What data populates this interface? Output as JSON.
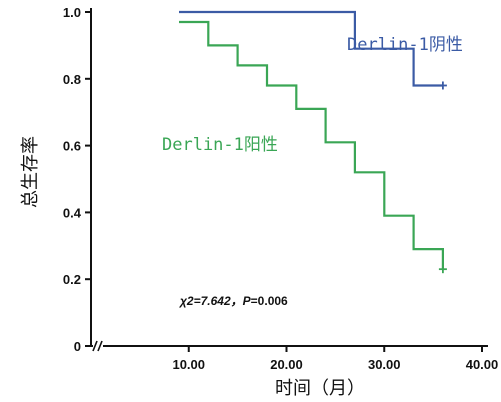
{
  "chart_data": {
    "type": "line",
    "step": true,
    "title": "",
    "xlabel": "时间（月）",
    "ylabel": "总生存率",
    "x_ticks": [
      "10.00",
      "20.00",
      "30.00",
      "40.00"
    ],
    "x_tick_values": [
      10,
      20,
      30,
      40
    ],
    "y_ticks": [
      "0",
      "0.2",
      "0.4",
      "0.6",
      "0.8",
      "1.0"
    ],
    "y_tick_values": [
      0,
      0.2,
      0.4,
      0.6,
      0.8,
      1.0
    ],
    "xlim": [
      0,
      40
    ],
    "ylim": [
      0,
      1.0
    ],
    "axis_break_x": true,
    "grid": false,
    "series": [
      {
        "name": "Derlin-1阴性",
        "color": "#3b5ba5",
        "points": [
          [
            9,
            1.0
          ],
          [
            27,
            1.0
          ],
          [
            27,
            0.89
          ],
          [
            33,
            0.89
          ],
          [
            33,
            0.78
          ],
          [
            36,
            0.78
          ]
        ],
        "censored": [
          [
            36,
            0.78
          ]
        ]
      },
      {
        "name": "Derlin-1阳性",
        "color": "#3aa655",
        "points": [
          [
            9,
            0.97
          ],
          [
            12,
            0.97
          ],
          [
            12,
            0.9
          ],
          [
            15,
            0.9
          ],
          [
            15,
            0.84
          ],
          [
            18,
            0.84
          ],
          [
            18,
            0.78
          ],
          [
            21,
            0.78
          ],
          [
            21,
            0.71
          ],
          [
            24,
            0.71
          ],
          [
            24,
            0.61
          ],
          [
            27,
            0.61
          ],
          [
            27,
            0.52
          ],
          [
            30,
            0.52
          ],
          [
            30,
            0.39
          ],
          [
            33,
            0.39
          ],
          [
            33,
            0.29
          ],
          [
            36,
            0.29
          ],
          [
            36,
            0.23
          ]
        ],
        "censored": [
          [
            36,
            0.23
          ]
        ]
      }
    ],
    "annotation": {
      "stat_name": "χ2",
      "stat_value": "=7.642，",
      "p_name": "P",
      "p_value": "=0.006"
    }
  }
}
